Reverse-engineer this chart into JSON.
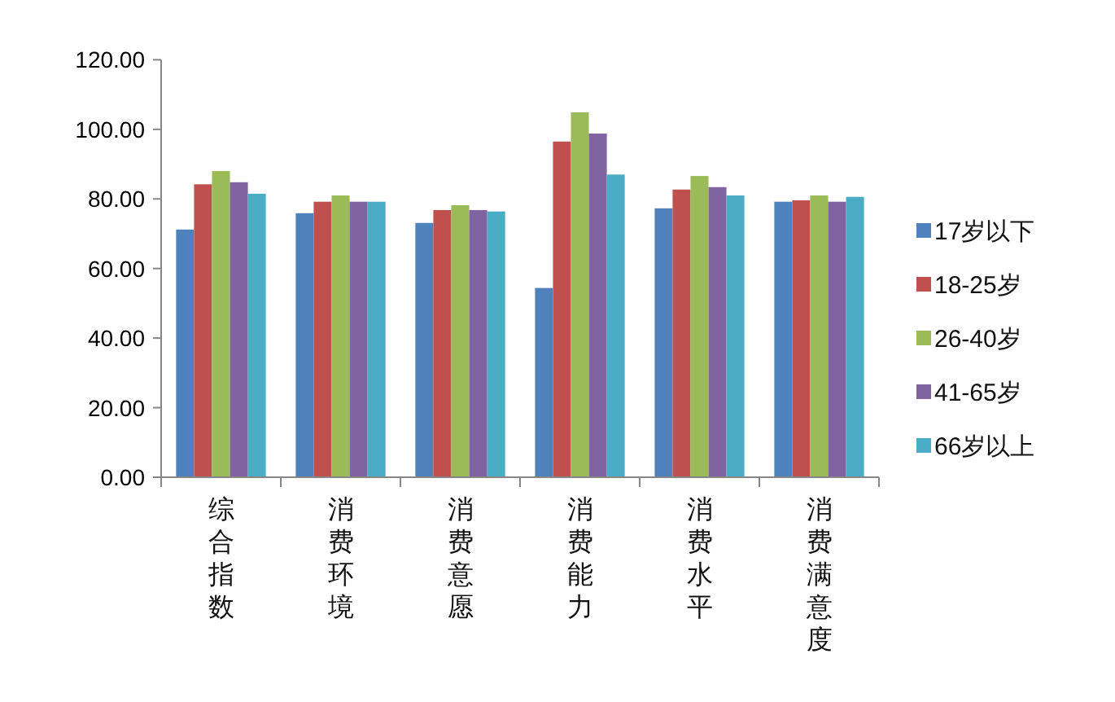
{
  "chart_data": {
    "type": "bar",
    "categories": [
      "综合指数",
      "消费环境",
      "消费意愿",
      "消费能力",
      "消费水平",
      "消费满意度"
    ],
    "series": [
      {
        "name": "17岁以下",
        "color": "#4f81bd",
        "values": [
          71.2,
          75.9,
          73.1,
          54.4,
          77.3,
          79.2
        ]
      },
      {
        "name": "18-25岁",
        "color": "#c0504d",
        "values": [
          84.2,
          79.2,
          76.8,
          96.5,
          82.7,
          79.6
        ]
      },
      {
        "name": "26-40岁",
        "color": "#9bbb59",
        "values": [
          88.0,
          81.0,
          78.2,
          104.9,
          86.6,
          81.0
        ]
      },
      {
        "name": "41-65岁",
        "color": "#8064a2",
        "values": [
          84.8,
          79.2,
          76.8,
          98.8,
          83.4,
          79.2
        ]
      },
      {
        "name": "66岁以上",
        "color": "#4bacc6",
        "values": [
          81.5,
          79.2,
          76.4,
          87.0,
          81.0,
          80.6
        ]
      }
    ],
    "ylim": [
      0,
      120
    ],
    "yticks": [
      {
        "value": 0,
        "label": "0.00"
      },
      {
        "value": 20,
        "label": "20.00"
      },
      {
        "value": 40,
        "label": "40.00"
      },
      {
        "value": 60,
        "label": "60.00"
      },
      {
        "value": 80,
        "label": "80.00"
      },
      {
        "value": 100,
        "label": "100.00"
      },
      {
        "value": 120,
        "label": "120.00"
      }
    ],
    "legend": "right"
  }
}
